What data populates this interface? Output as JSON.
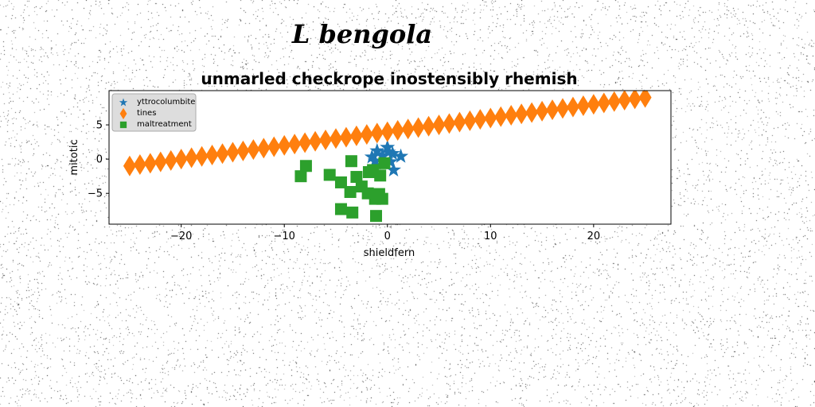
{
  "chart_data": {
    "type": "scatter",
    "suptitle": "L bengola",
    "title": "unmarled checkrope inostensibly rhemish",
    "xlabel": "shieldfern",
    "ylabel": "mitotic",
    "xlim": [
      -27,
      27.5
    ],
    "ylim": [
      -9.5,
      10
    ],
    "xticks": [
      -20,
      -10,
      0,
      10,
      20
    ],
    "yticks": [
      -5,
      0,
      5
    ],
    "xtick_labels": [
      "−20",
      "−10",
      "0",
      "10",
      "20"
    ],
    "ytick_labels": [
      "−5",
      "0",
      "5"
    ],
    "legend_position": "upper left",
    "grid": false,
    "series": [
      {
        "name": "yttrocolumbite",
        "marker": "star",
        "color": "#1f77b4",
        "x": [
          -1.5,
          -1.0,
          -0.5,
          0.0,
          0.5,
          1.3,
          -0.3,
          0.3,
          0.6,
          -1.2,
          0.1
        ],
        "y": [
          0.3,
          1.2,
          0.5,
          1.7,
          0.8,
          0.4,
          -0.6,
          -0.4,
          -1.6,
          -0.3,
          1.0
        ]
      },
      {
        "name": "tines",
        "marker": "thin_diamond",
        "color": "#ff7f0e",
        "x": [
          -25,
          -24,
          -23,
          -22,
          -21,
          -20,
          -19,
          -18,
          -17,
          -16,
          -15,
          -14,
          -13,
          -12,
          -11,
          -10,
          -9,
          -8,
          -7,
          -6,
          -5,
          -4,
          -3,
          -2,
          -1,
          0,
          1,
          2,
          3,
          4,
          5,
          6,
          7,
          8,
          9,
          10,
          11,
          12,
          13,
          14,
          15,
          16,
          17,
          18,
          19,
          20,
          21,
          22,
          23,
          24,
          25
        ],
        "y": [
          -1.0,
          -0.8,
          -0.6,
          -0.4,
          -0.2,
          0.0,
          0.2,
          0.4,
          0.6,
          0.8,
          1.0,
          1.2,
          1.4,
          1.6,
          1.8,
          2.0,
          2.2,
          2.4,
          2.6,
          2.8,
          3.0,
          3.2,
          3.4,
          3.6,
          3.8,
          4.0,
          4.2,
          4.4,
          4.6,
          4.8,
          5.0,
          5.2,
          5.4,
          5.6,
          5.8,
          6.0,
          6.2,
          6.4,
          6.6,
          6.8,
          7.0,
          7.2,
          7.4,
          7.6,
          7.8,
          8.0,
          8.2,
          8.4,
          8.6,
          8.8,
          9.0
        ]
      },
      {
        "name": "maltreatment",
        "marker": "square",
        "color": "#2ca02c",
        "x": [
          -7.9,
          -8.4,
          -5.6,
          -4.5,
          -3.5,
          -3.0,
          -2.5,
          -1.8,
          -1.4,
          -0.7,
          -0.3,
          -1.9,
          -0.8,
          -1.2,
          -0.5,
          -4.5,
          -3.4,
          -1.1,
          -3.6
        ],
        "y": [
          -1.0,
          -2.5,
          -2.3,
          -3.4,
          -0.3,
          -2.6,
          -4.0,
          -1.9,
          -1.6,
          -2.4,
          -0.6,
          -5.0,
          -5.1,
          -5.8,
          -5.8,
          -7.3,
          -7.8,
          -8.3,
          -4.8
        ]
      }
    ]
  }
}
